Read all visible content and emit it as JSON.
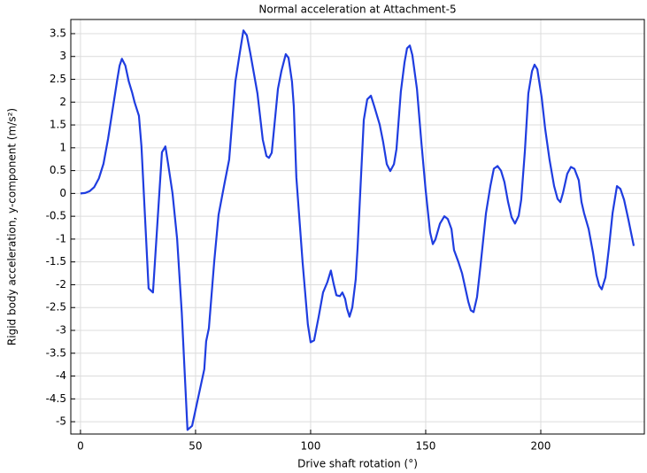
{
  "chart_data": {
    "type": "line",
    "title": "Normal acceleration at Attachment-5",
    "x_label": "Drive shaft rotation (°)",
    "y_label": "Rigid body acceleration, y-component (m/s²)",
    "xlim": [
      -4.2,
      245
    ],
    "ylim": [
      -5.27,
      3.81
    ],
    "xticks": [
      0,
      50,
      100,
      150,
      200
    ],
    "yticks": [
      -5,
      -4.5,
      -4,
      -3.5,
      -3,
      -2.5,
      -2,
      -1.5,
      -1,
      -0.5,
      0,
      0.5,
      1,
      1.5,
      2,
      2.5,
      3,
      3.5
    ],
    "grid": true,
    "series": [
      {
        "color": "#1f3de0",
        "x": [
          0,
          2,
          4,
          6,
          8,
          10,
          12,
          14,
          16,
          17,
          18,
          19.5,
          21,
          22.5,
          23.5,
          25.4,
          26.5,
          29.6,
          31.5,
          35.4,
          36.9,
          38.1,
          40,
          42,
          44,
          45.5,
          46.5,
          48.5,
          53.8,
          54.6,
          55.8,
          58.1,
          60,
          62.7,
          64.6,
          67.3,
          69.2,
          70.8,
          72.3,
          73.8,
          76.9,
          79.2,
          80.8,
          81.9,
          83.1,
          85.8,
          87.3,
          89.2,
          90.4,
          91.9,
          92.7,
          93.8,
          96.5,
          98.8,
          100,
          101.5,
          103.5,
          105.4,
          107.3,
          108.8,
          110,
          111.2,
          112.7,
          113.8,
          115,
          115.8,
          116.9,
          118.1,
          119.6,
          120.4,
          121.5,
          123.1,
          124.6,
          126.2,
          127.7,
          130,
          131.5,
          133.1,
          134.6,
          136.2,
          137.3,
          139.2,
          140.8,
          141.9,
          143.1,
          144.2,
          146.2,
          148.1,
          150,
          151.9,
          153.1,
          154.2,
          156.2,
          158.1,
          159.6,
          161.2,
          162.3,
          164.2,
          165.8,
          168.5,
          169.6,
          170.8,
          172.3,
          173.8,
          176.2,
          178.1,
          179.6,
          181.2,
          182.7,
          184.2,
          185.8,
          187.3,
          188.8,
          190.4,
          191.5,
          193.1,
          194.6,
          196.2,
          197.3,
          198.5,
          200.4,
          201.9,
          203.8,
          205.8,
          207.3,
          208.5,
          209.6,
          211.5,
          213.1,
          214.6,
          216.5,
          217.7,
          218.8,
          220.8,
          222.7,
          224.2,
          225.4,
          226.5,
          228.1,
          229.6,
          231.2,
          233.1,
          234.6,
          236.2,
          238.1,
          240.4
        ],
        "values": [
          0,
          0.01,
          0.05,
          0.14,
          0.33,
          0.65,
          1.2,
          1.85,
          2.5,
          2.8,
          2.95,
          2.8,
          2.45,
          2.2,
          2.0,
          1.7,
          1.03,
          -2.08,
          -2.17,
          0.9,
          1.03,
          0.64,
          0.0,
          -1.0,
          -2.6,
          -4.15,
          -5.18,
          -5.09,
          -3.85,
          -3.24,
          -2.95,
          -1.5,
          -0.47,
          0.25,
          0.74,
          2.45,
          3.07,
          3.57,
          3.46,
          3.07,
          2.19,
          1.18,
          0.82,
          0.78,
          0.89,
          2.29,
          2.68,
          3.05,
          2.97,
          2.45,
          1.9,
          0.35,
          -1.5,
          -2.87,
          -3.26,
          -3.22,
          -2.7,
          -2.17,
          -1.94,
          -1.69,
          -1.98,
          -2.23,
          -2.25,
          -2.17,
          -2.31,
          -2.52,
          -2.7,
          -2.5,
          -1.88,
          -1.2,
          -0.04,
          1.61,
          2.06,
          2.14,
          1.9,
          1.51,
          1.13,
          0.64,
          0.49,
          0.64,
          0.97,
          2.23,
          2.87,
          3.18,
          3.24,
          3.03,
          2.29,
          1.13,
          0.06,
          -0.85,
          -1.11,
          -1.01,
          -0.66,
          -0.5,
          -0.56,
          -0.78,
          -1.24,
          -1.5,
          -1.75,
          -2.37,
          -2.56,
          -2.6,
          -2.27,
          -1.59,
          -0.43,
          0.16,
          0.54,
          0.6,
          0.5,
          0.25,
          -0.19,
          -0.52,
          -0.66,
          -0.49,
          -0.14,
          0.93,
          2.19,
          2.68,
          2.82,
          2.72,
          2.1,
          1.42,
          0.74,
          0.16,
          -0.12,
          -0.19,
          0,
          0.43,
          0.58,
          0.54,
          0.29,
          -0.19,
          -0.43,
          -0.78,
          -1.3,
          -1.79,
          -2.02,
          -2.1,
          -1.84,
          -1.2,
          -0.43,
          0.16,
          0.1,
          -0.14,
          -0.58,
          -1.15
        ]
      }
    ]
  }
}
